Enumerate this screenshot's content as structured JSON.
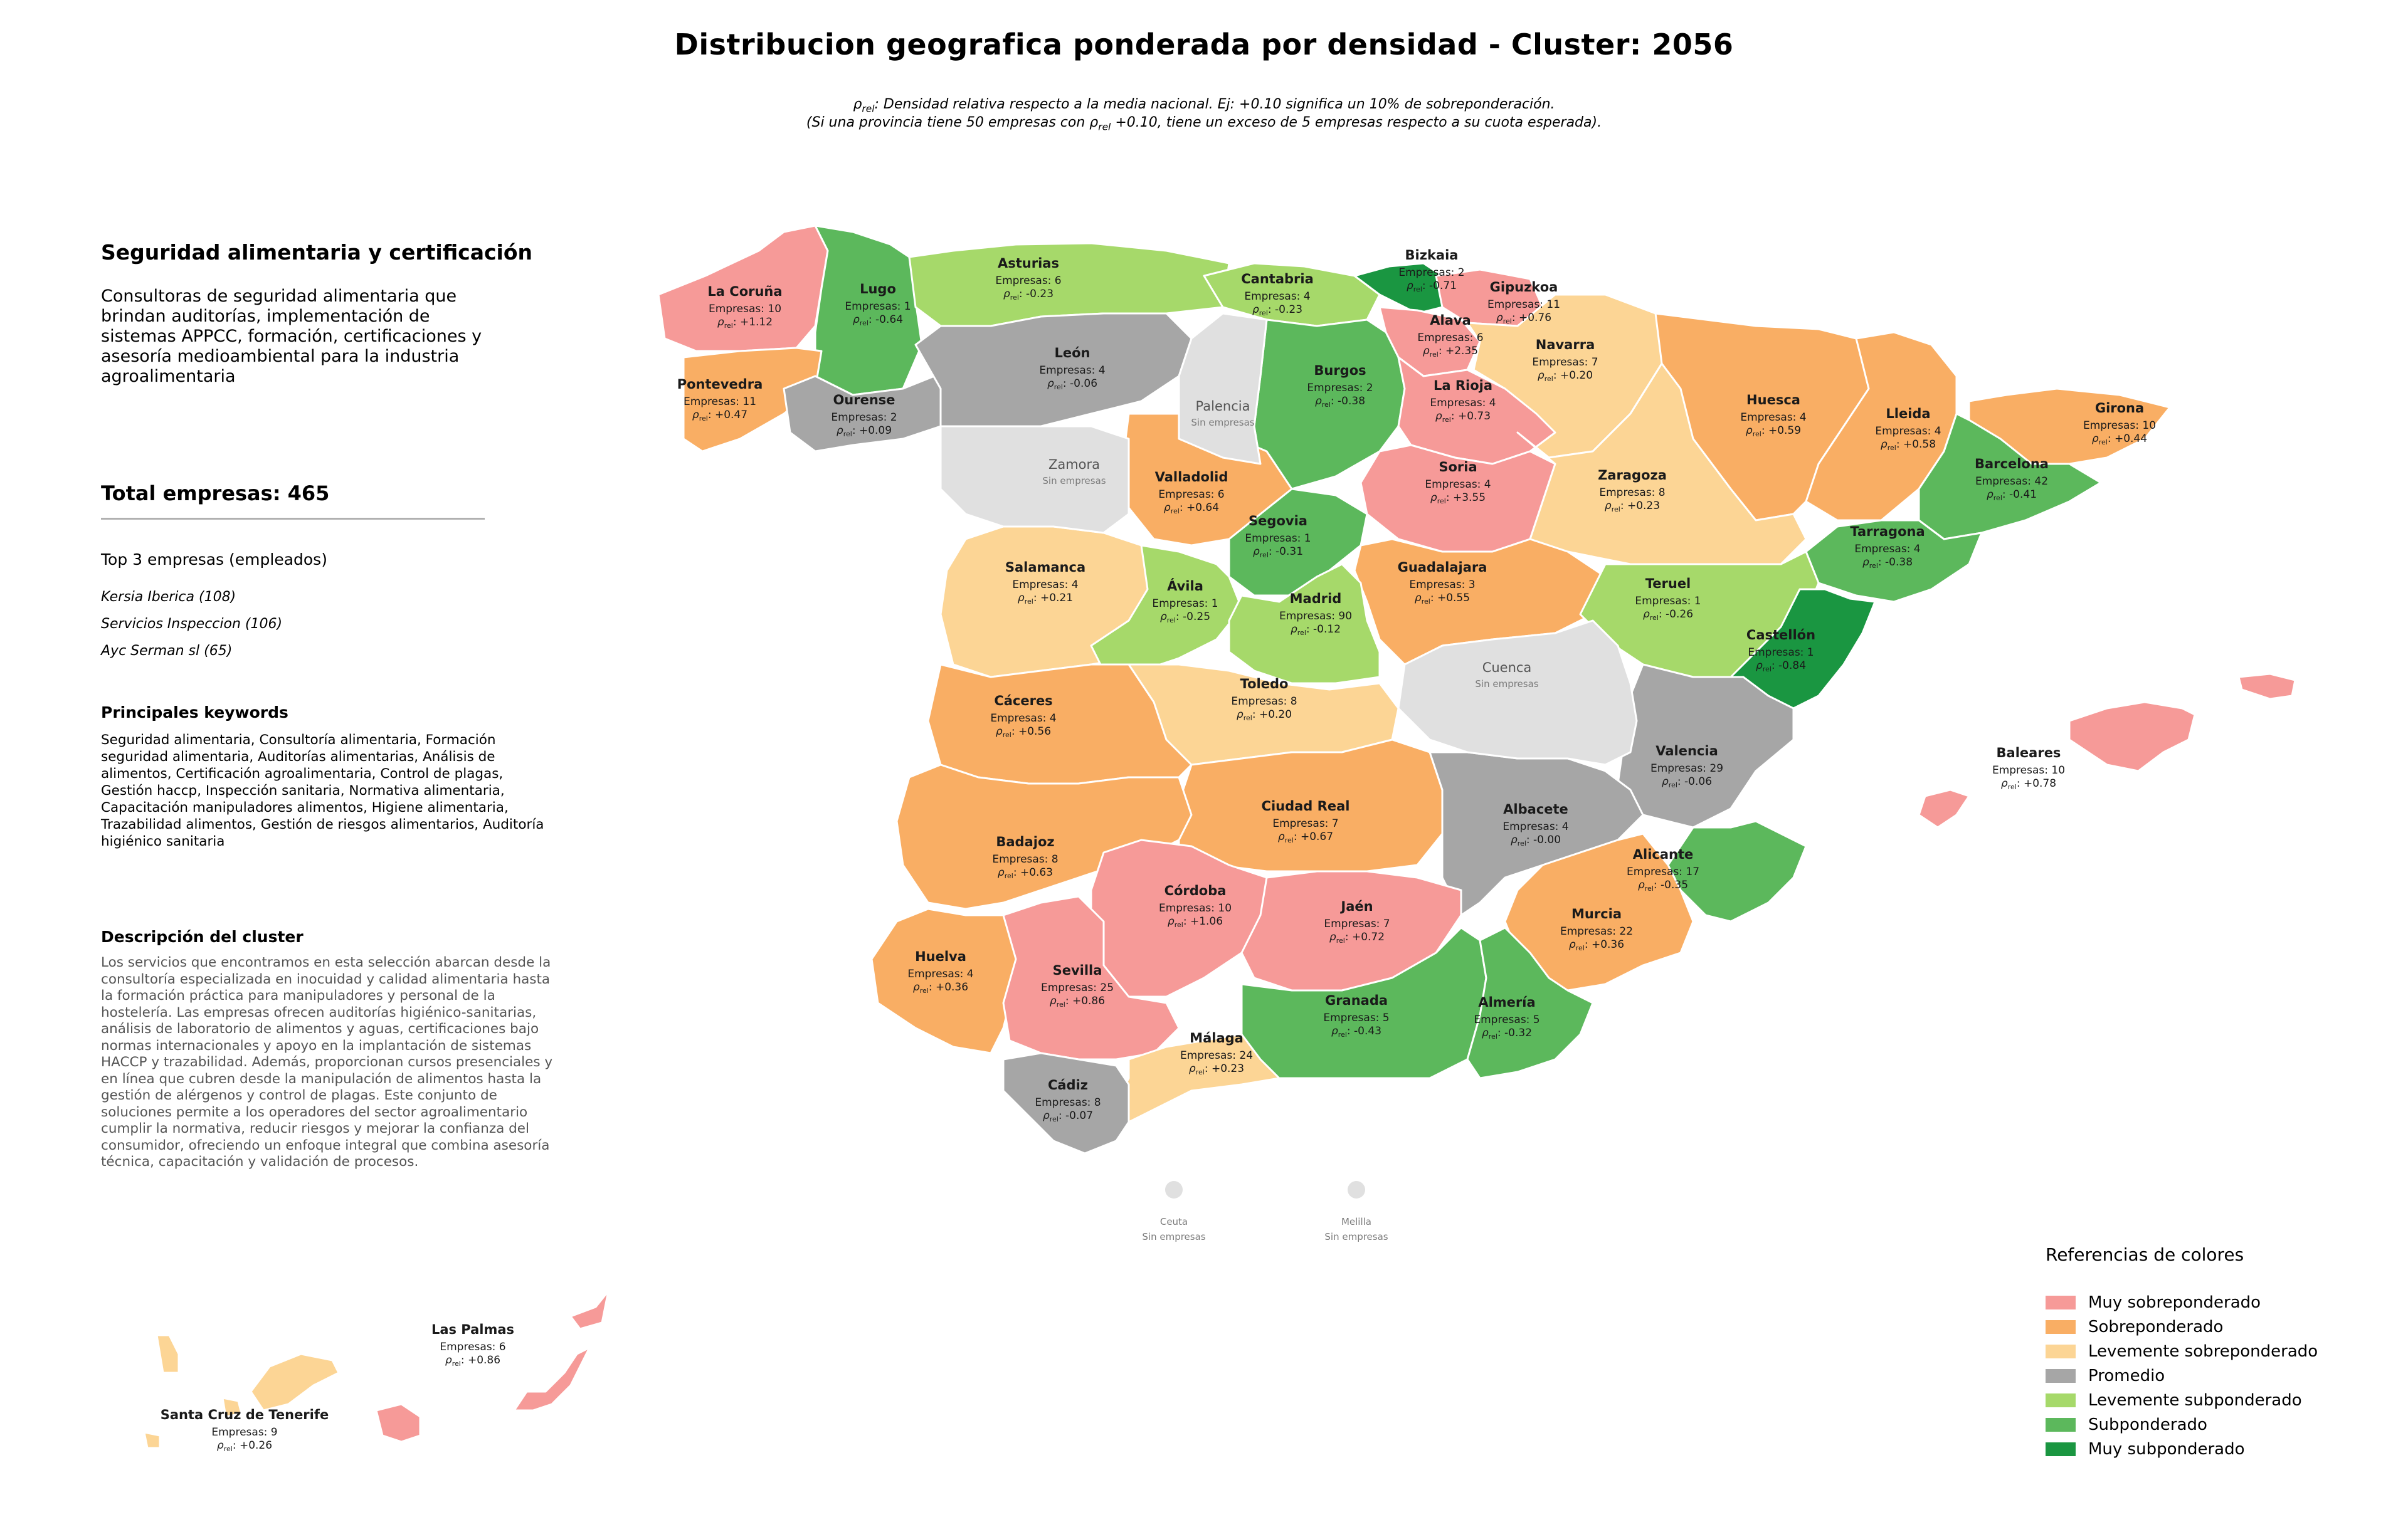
{
  "title": "Distribucion geografica ponderada por densidad - Cluster: 2056",
  "note_line1": "ρrel: Densidad relativa respecto a la media nacional. Ej: +0.10 significa un 10% de sobreponderación.",
  "note_line2": "(Si una provincia tiene 50 empresas con ρrel +0.10, tiene un exceso de 5 empresas respecto a su cuota esperada).",
  "sidebar": {
    "cluster_title": "Seguridad alimentaria y certificación",
    "cluster_summary": "Consultoras de seguridad alimentaria que brindan auditorías, implementación de sistemas APPCC, formación, certificaciones y asesoría medioambiental para la industria agroalimentaria",
    "total_label": "Total empresas: 465",
    "top_title": "Top 3 empresas (empleados)",
    "top_companies": [
      "Kersia Iberica (108)",
      "Servicios Inspeccion (106)",
      "Ayc Serman sl (65)"
    ],
    "keywords_title": "Principales keywords",
    "keywords": "Seguridad alimentaria, Consultoría alimentaria, Formación seguridad alimentaria, Auditorías alimentarias, Análisis de alimentos, Certificación agroalimentaria, Control de plagas, Gestión haccp, Inspección sanitaria, Normativa alimentaria, Capacitación manipuladores alimentos, Higiene alimentaria, Trazabilidad alimentos, Gestión de riesgos alimentarios, Auditoría higiénico sanitaria",
    "description_title": "Descripción del cluster",
    "description": "Los servicios que encontramos en esta selección abarcan desde la consultoría especializada en inocuidad y calidad alimentaria hasta la formación práctica para manipuladores y personal de la hostelería. Las empresas ofrecen auditorías higiénico-sanitarias, análisis de laboratorio de alimentos y aguas, certificaciones bajo normas internacionales y apoyo en la implantación de sistemas HACCP y trazabilidad. Además, proporcionan cursos presenciales y en línea que cubren desde la manipulación de alimentos hasta la gestión de alérgenos y control de plagas. Este conjunto de soluciones permite a los operadores del sector agroalimentario cumplir la normativa, reducir riesgos y mejorar la confianza del consumidor, ofreciendo un enfoque integral que combina asesoría técnica, capacitación y validación de procesos."
  },
  "colors": {
    "muy_sobre": "#f69a98",
    "sobre": "#f9ae64",
    "leve_sobre": "#fcd595",
    "promedio": "#a6a6a6",
    "leve_sub": "#a6d96a",
    "sub": "#5cb85c",
    "muy_sub": "#1a9641",
    "sin": "#e0e0e0"
  },
  "legend": {
    "title": "Referencias de colores",
    "items": [
      {
        "label": "Muy sobreponderado",
        "color": "#f69a98"
      },
      {
        "label": "Sobreponderado",
        "color": "#f9ae64"
      },
      {
        "label": "Levemente sobreponderado",
        "color": "#fcd595"
      },
      {
        "label": "Promedio",
        "color": "#a6a6a6"
      },
      {
        "label": "Levemente subponderado",
        "color": "#a6d96a"
      },
      {
        "label": "Subponderado",
        "color": "#5cb85c"
      },
      {
        "label": "Muy subponderado",
        "color": "#1a9641"
      }
    ]
  },
  "provinces": [
    {
      "name": "La Coruña",
      "empresas": "Empresas: 10",
      "rho": "+1.12",
      "cat": "muy_sobre"
    },
    {
      "name": "Lugo",
      "empresas": "Empresas: 1",
      "rho": "-0.64",
      "cat": "sub"
    },
    {
      "name": "Asturias",
      "empresas": "Empresas: 6",
      "rho": "-0.23",
      "cat": "leve_sub"
    },
    {
      "name": "Cantabria",
      "empresas": "Empresas: 4",
      "rho": "-0.23",
      "cat": "leve_sub"
    },
    {
      "name": "Bizkaia",
      "empresas": "Empresas: 2",
      "rho": "-0.71",
      "cat": "muy_sub"
    },
    {
      "name": "Gipuzkoa",
      "empresas": "Empresas: 11",
      "rho": "+0.76",
      "cat": "muy_sobre"
    },
    {
      "name": "Alava",
      "empresas": "Empresas: 6",
      "rho": "+2.35",
      "cat": "muy_sobre"
    },
    {
      "name": "Navarra",
      "empresas": "Empresas: 7",
      "rho": "+0.20",
      "cat": "leve_sobre"
    },
    {
      "name": "Pontevedra",
      "empresas": "Empresas: 11",
      "rho": "+0.47",
      "cat": "sobre"
    },
    {
      "name": "Ourense",
      "empresas": "Empresas: 2",
      "rho": "+0.09",
      "cat": "promedio"
    },
    {
      "name": "León",
      "empresas": "Empresas: 4",
      "rho": "-0.06",
      "cat": "promedio"
    },
    {
      "name": "Burgos",
      "empresas": "Empresas: 2",
      "rho": "-0.38",
      "cat": "sub"
    },
    {
      "name": "La Rioja",
      "empresas": "Empresas: 4",
      "rho": "+0.73",
      "cat": "muy_sobre"
    },
    {
      "name": "Huesca",
      "empresas": "Empresas: 4",
      "rho": "+0.59",
      "cat": "sobre"
    },
    {
      "name": "Lleida",
      "empresas": "Empresas: 4",
      "rho": "+0.58",
      "cat": "sobre"
    },
    {
      "name": "Girona",
      "empresas": "Empresas: 10",
      "rho": "+0.44",
      "cat": "sobre"
    },
    {
      "name": "Barcelona",
      "empresas": "Empresas: 42",
      "rho": "-0.41",
      "cat": "sub"
    },
    {
      "name": "Valladolid",
      "empresas": "Empresas: 6",
      "rho": "+0.64",
      "cat": "sobre"
    },
    {
      "name": "Soria",
      "empresas": "Empresas: 4",
      "rho": "+3.55",
      "cat": "muy_sobre"
    },
    {
      "name": "Zaragoza",
      "empresas": "Empresas: 8",
      "rho": "+0.23",
      "cat": "leve_sobre"
    },
    {
      "name": "Segovia",
      "empresas": "Empresas: 1",
      "rho": "-0.31",
      "cat": "sub"
    },
    {
      "name": "Tarragona",
      "empresas": "Empresas: 4",
      "rho": "-0.38",
      "cat": "sub"
    },
    {
      "name": "Salamanca",
      "empresas": "Empresas: 4",
      "rho": "+0.21",
      "cat": "leve_sobre"
    },
    {
      "name": "Guadalajara",
      "empresas": "Empresas: 3",
      "rho": "+0.55",
      "cat": "sobre"
    },
    {
      "name": "Ávila",
      "empresas": "Empresas: 1",
      "rho": "-0.25",
      "cat": "leve_sub"
    },
    {
      "name": "Madrid",
      "empresas": "Empresas: 90",
      "rho": "-0.12",
      "cat": "leve_sub"
    },
    {
      "name": "Teruel",
      "empresas": "Empresas: 1",
      "rho": "-0.26",
      "cat": "leve_sub"
    },
    {
      "name": "Castellón",
      "empresas": "Empresas: 1",
      "rho": "-0.84",
      "cat": "muy_sub"
    },
    {
      "name": "Cáceres",
      "empresas": "Empresas: 4",
      "rho": "+0.56",
      "cat": "sobre"
    },
    {
      "name": "Toledo",
      "empresas": "Empresas: 8",
      "rho": "+0.20",
      "cat": "leve_sobre"
    },
    {
      "name": "Valencia",
      "empresas": "Empresas: 29",
      "rho": "-0.06",
      "cat": "promedio"
    },
    {
      "name": "Baleares",
      "empresas": "Empresas: 10",
      "rho": "+0.78",
      "cat": "muy_sobre"
    },
    {
      "name": "Ciudad Real",
      "empresas": "Empresas: 7",
      "rho": "+0.67",
      "cat": "sobre"
    },
    {
      "name": "Albacete",
      "empresas": "Empresas: 4",
      "rho": "-0.00",
      "cat": "promedio"
    },
    {
      "name": "Badajoz",
      "empresas": "Empresas: 8",
      "rho": "+0.63",
      "cat": "sobre"
    },
    {
      "name": "Alicante",
      "empresas": "Empresas: 17",
      "rho": "-0.35",
      "cat": "sub"
    },
    {
      "name": "Córdoba",
      "empresas": "Empresas: 10",
      "rho": "+1.06",
      "cat": "muy_sobre"
    },
    {
      "name": "Jaén",
      "empresas": "Empresas: 7",
      "rho": "+0.72",
      "cat": "muy_sobre"
    },
    {
      "name": "Murcia",
      "empresas": "Empresas: 22",
      "rho": "+0.36",
      "cat": "sobre"
    },
    {
      "name": "Huelva",
      "empresas": "Empresas: 4",
      "rho": "+0.36",
      "cat": "sobre"
    },
    {
      "name": "Sevilla",
      "empresas": "Empresas: 25",
      "rho": "+0.86",
      "cat": "muy_sobre"
    },
    {
      "name": "Granada",
      "empresas": "Empresas: 5",
      "rho": "-0.43",
      "cat": "sub"
    },
    {
      "name": "Almería",
      "empresas": "Empresas: 5",
      "rho": "-0.32",
      "cat": "sub"
    },
    {
      "name": "Málaga",
      "empresas": "Empresas: 24",
      "rho": "+0.23",
      "cat": "leve_sobre"
    },
    {
      "name": "Cádiz",
      "empresas": "Empresas: 8",
      "rho": "-0.07",
      "cat": "promedio"
    },
    {
      "name": "Las Palmas",
      "empresas": "Empresas: 6",
      "rho": "+0.86",
      "cat": "muy_sobre"
    },
    {
      "name": "Santa Cruz de Tenerife",
      "empresas": "Empresas: 9",
      "rho": "+0.26",
      "cat": "leve_sobre"
    }
  ],
  "sin_empresas": {
    "label": "Sin empresas",
    "provinces": [
      "Palencia",
      "Zamora",
      "Cuenca"
    ],
    "cities": [
      "Ceuta",
      "Melilla"
    ]
  }
}
